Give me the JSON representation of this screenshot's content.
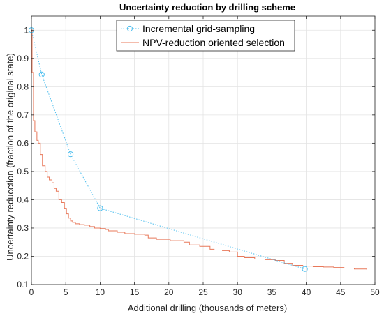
{
  "chart_data": {
    "type": "line",
    "title": "Uncertainty reduction by drilling scheme",
    "xlabel": "Additional drilling (thousands of meters)",
    "ylabel": "Uncertainty reducction (fraction of the original state)",
    "xlim": [
      0,
      50
    ],
    "ylim": [
      0.1,
      1.05
    ],
    "xticks": [
      0,
      5,
      10,
      15,
      20,
      25,
      30,
      35,
      40,
      45,
      50
    ],
    "yticks": [
      0.1,
      0.2,
      0.3,
      0.4,
      0.5,
      0.6,
      0.7,
      0.8,
      0.9,
      1.0
    ],
    "xtick_labels": [
      "0",
      "5",
      "10",
      "15",
      "20",
      "25",
      "30",
      "35",
      "40",
      "45",
      "50"
    ],
    "ytick_labels": [
      "0.1",
      "0.2",
      "0.3",
      "0.4",
      "0.5",
      "0.6",
      "0.7",
      "0.8",
      "0.9",
      "1"
    ],
    "grid": true,
    "legend_position": "top-center",
    "series": [
      {
        "name": "Incremental grid-sampling",
        "color": "#4DBEEE",
        "style": "dotted-with-circle-markers",
        "x": [
          0,
          1.5,
          5.7,
          10,
          39.8
        ],
        "y": [
          1.0,
          0.843,
          0.561,
          0.37,
          0.155
        ]
      },
      {
        "name": "NPV-reduction oriented selection",
        "color": "#E8785A",
        "style": "solid",
        "x": [
          0,
          0.1,
          0.3,
          0.5,
          0.8,
          1.0,
          1.3,
          1.6,
          2.0,
          2.3,
          2.6,
          3.0,
          3.3,
          3.6,
          4.0,
          4.4,
          4.8,
          5.1,
          5.4,
          5.7,
          6.0,
          6.4,
          7.0,
          7.7,
          8.5,
          9.2,
          10.0,
          10.8,
          11.2,
          12.5,
          13.6,
          15.0,
          16.5,
          17.0,
          18.2,
          19.0,
          20.2,
          21.0,
          22.2,
          23.0,
          24.5,
          26.0,
          26.6,
          27.8,
          28.8,
          30.0,
          31.0,
          32.5,
          34.0,
          35.5,
          36.8,
          38.0,
          39.5,
          41.0,
          42.5,
          44.0,
          45.5,
          47.0,
          48.8
        ],
        "y": [
          1.0,
          0.85,
          0.68,
          0.64,
          0.61,
          0.6,
          0.56,
          0.52,
          0.5,
          0.48,
          0.47,
          0.46,
          0.44,
          0.43,
          0.4,
          0.39,
          0.37,
          0.35,
          0.335,
          0.325,
          0.32,
          0.315,
          0.312,
          0.31,
          0.305,
          0.3,
          0.298,
          0.295,
          0.29,
          0.285,
          0.28,
          0.278,
          0.275,
          0.265,
          0.26,
          0.26,
          0.255,
          0.255,
          0.25,
          0.24,
          0.235,
          0.225,
          0.222,
          0.22,
          0.215,
          0.2,
          0.195,
          0.19,
          0.188,
          0.185,
          0.175,
          0.168,
          0.165,
          0.163,
          0.162,
          0.16,
          0.158,
          0.155,
          0.153
        ]
      }
    ]
  }
}
